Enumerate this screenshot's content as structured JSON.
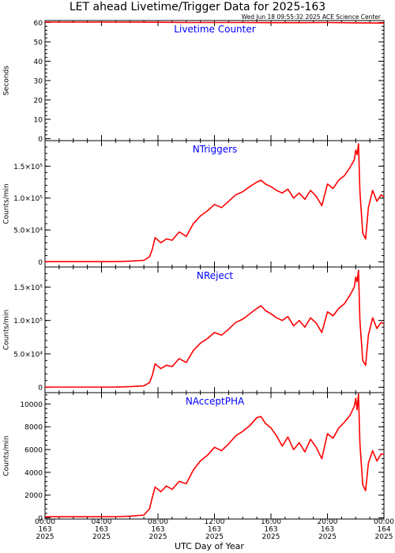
{
  "title": "LET ahead Livetime/Trigger Data for 2025-163",
  "timestamp": "Wed Jun 18 09:55:32 2025 ACE Science Center",
  "xlabel": "UTC Day of Year",
  "line_color": "#ff0000",
  "panel_title_color": "#0000ff",
  "x_ticks": [
    {
      "time": "00:00",
      "doy": "163",
      "year": "2025"
    },
    {
      "time": "04:00",
      "doy": "163",
      "year": "2025"
    },
    {
      "time": "08:00",
      "doy": "163",
      "year": "2025"
    },
    {
      "time": "12:00",
      "doy": "163",
      "year": "2025"
    },
    {
      "time": "16:00",
      "doy": "163",
      "year": "2025"
    },
    {
      "time": "20:00",
      "doy": "163",
      "year": "2025"
    },
    {
      "time": "00:00",
      "doy": "164",
      "year": "2025"
    }
  ],
  "chart_data": [
    {
      "type": "line",
      "panel_title": "Livetime Counter",
      "ylabel": "Seconds",
      "ylim": [
        -1,
        61
      ],
      "yticks": [
        0,
        10,
        20,
        30,
        40,
        50,
        60
      ],
      "ytick_labels": [
        "0",
        "10",
        "20",
        "30",
        "40",
        "50",
        "60"
      ],
      "x_hours": [
        0,
        2,
        4,
        6,
        8,
        10,
        12,
        14,
        16,
        18,
        20,
        22,
        24
      ],
      "y": [
        60.2,
        60.2,
        60.2,
        60.2,
        60.1,
        60.0,
        60.0,
        60.0,
        59.9,
        59.9,
        60.0,
        59.8,
        59.7
      ]
    },
    {
      "type": "line",
      "panel_title": "NTriggers",
      "ylabel": "Counts/min",
      "ylim": [
        -8000,
        190000
      ],
      "yticks": [
        0,
        50000,
        100000,
        150000
      ],
      "ytick_labels": [
        "0",
        "5.0×10⁴",
        "1.0×10⁵",
        "1.5×10⁵"
      ],
      "x_hours": [
        0,
        1,
        2,
        3,
        4,
        5,
        6,
        7,
        7.4,
        7.6,
        7.8,
        8.2,
        8.6,
        9.0,
        9.5,
        10.0,
        10.5,
        11.0,
        11.5,
        12.0,
        12.5,
        13.0,
        13.5,
        14.0,
        14.5,
        15.0,
        15.3,
        15.6,
        16.0,
        16.4,
        16.8,
        17.2,
        17.6,
        18.0,
        18.4,
        18.8,
        19.2,
        19.6,
        20.0,
        20.4,
        20.8,
        21.2,
        21.6,
        21.9,
        22.0,
        22.1,
        22.2,
        22.3,
        22.5,
        22.7,
        22.9,
        23.2,
        23.5,
        23.8,
        24.0
      ],
      "y": [
        400,
        400,
        400,
        400,
        400,
        450,
        1200,
        2500,
        8000,
        20000,
        38000,
        30000,
        36000,
        34000,
        47000,
        40000,
        60000,
        72000,
        80000,
        90000,
        85000,
        95000,
        105000,
        110000,
        118000,
        125000,
        128000,
        122000,
        118000,
        112000,
        108000,
        114000,
        100000,
        108000,
        98000,
        112000,
        103000,
        88000,
        122000,
        115000,
        128000,
        135000,
        148000,
        160000,
        175000,
        168000,
        185000,
        110000,
        45000,
        36000,
        85000,
        112000,
        95000,
        105000,
        102000
      ]
    },
    {
      "type": "line",
      "panel_title": "NReject",
      "ylabel": "Counts/min",
      "ylim": [
        -8000,
        180000
      ],
      "yticks": [
        0,
        50000,
        100000,
        150000
      ],
      "ytick_labels": [
        "0",
        "5.0×10⁴",
        "1.0×10⁵",
        "1.5×10⁵"
      ],
      "x_hours": [
        0,
        1,
        2,
        3,
        4,
        5,
        6,
        7,
        7.4,
        7.6,
        7.8,
        8.2,
        8.6,
        9.0,
        9.5,
        10.0,
        10.5,
        11.0,
        11.5,
        12.0,
        12.5,
        13.0,
        13.5,
        14.0,
        14.5,
        15.0,
        15.3,
        15.6,
        16.0,
        16.4,
        16.8,
        17.2,
        17.6,
        18.0,
        18.4,
        18.8,
        19.2,
        19.6,
        20.0,
        20.4,
        20.8,
        21.2,
        21.6,
        21.9,
        22.0,
        22.1,
        22.2,
        22.3,
        22.5,
        22.7,
        22.9,
        23.2,
        23.5,
        23.8,
        24.0
      ],
      "y": [
        300,
        300,
        300,
        300,
        300,
        350,
        1000,
        2200,
        7000,
        18000,
        35000,
        28000,
        33000,
        31000,
        43000,
        37000,
        55000,
        66000,
        73000,
        82000,
        78000,
        87000,
        97000,
        102000,
        110000,
        118000,
        122000,
        115000,
        110000,
        104000,
        100000,
        106000,
        92000,
        100000,
        90000,
        104000,
        96000,
        82000,
        113000,
        107000,
        118000,
        125000,
        138000,
        150000,
        165000,
        158000,
        175000,
        100000,
        40000,
        33000,
        78000,
        104000,
        88000,
        97000,
        95000
      ]
    },
    {
      "type": "line",
      "panel_title": "NAcceptPHA",
      "ylabel": "Counts/min",
      "ylim": [
        -100,
        11000
      ],
      "yticks": [
        0,
        2000,
        4000,
        6000,
        8000,
        10000
      ],
      "ytick_labels": [
        "0",
        "2000",
        "4000",
        "6000",
        "8000",
        "10000"
      ],
      "x_hours": [
        0,
        1,
        2,
        3,
        4,
        5,
        6,
        7,
        7.4,
        7.6,
        7.8,
        8.2,
        8.6,
        9.0,
        9.5,
        10.0,
        10.5,
        11.0,
        11.5,
        12.0,
        12.5,
        13.0,
        13.5,
        14.0,
        14.5,
        15.0,
        15.3,
        15.6,
        16.0,
        16.4,
        16.8,
        17.2,
        17.6,
        18.0,
        18.4,
        18.8,
        19.2,
        19.6,
        20.0,
        20.4,
        20.8,
        21.2,
        21.6,
        21.9,
        22.0,
        22.1,
        22.2,
        22.3,
        22.5,
        22.7,
        22.9,
        23.2,
        23.5,
        23.8,
        24.0
      ],
      "y": [
        100,
        100,
        100,
        100,
        100,
        110,
        150,
        250,
        800,
        1800,
        2700,
        2300,
        2800,
        2500,
        3200,
        3000,
        4200,
        5000,
        5500,
        6200,
        5900,
        6500,
        7200,
        7600,
        8100,
        8800,
        8900,
        8300,
        7900,
        7200,
        6300,
        7100,
        6000,
        6600,
        5800,
        6900,
        6200,
        5200,
        7400,
        7000,
        7900,
        8400,
        9000,
        9800,
        10500,
        9500,
        10900,
        6500,
        2900,
        2400,
        4800,
        5900,
        5000,
        5600,
        5600
      ]
    }
  ]
}
